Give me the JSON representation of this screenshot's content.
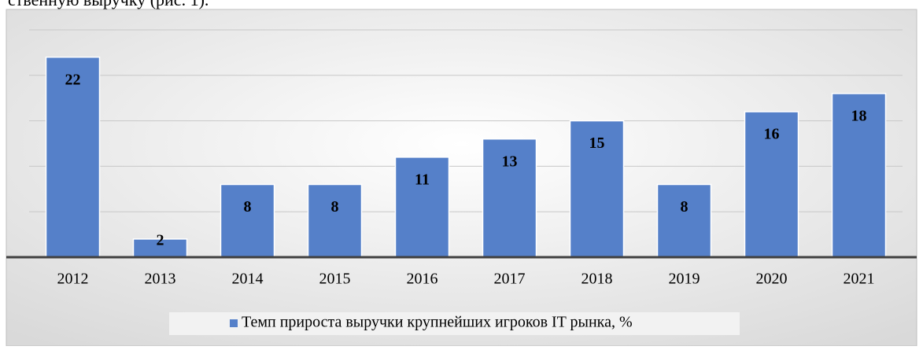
{
  "page_text": "ственную выручку (рис. 1).",
  "chart_data": {
    "type": "bar",
    "categories": [
      "2012",
      "2013",
      "2014",
      "2015",
      "2016",
      "2017",
      "2018",
      "2019",
      "2020",
      "2021"
    ],
    "series": [
      {
        "name": "Темп прироста выручки крупнейших игроков IT рынка, %",
        "color": "#5580c9",
        "values": [
          22,
          2,
          8,
          8,
          11,
          13,
          15,
          8,
          16,
          18
        ]
      }
    ],
    "ylim": [
      0,
      25
    ],
    "yticks": [
      0,
      5,
      10,
      15,
      20,
      25
    ],
    "grid": true,
    "legend": "bottom"
  }
}
